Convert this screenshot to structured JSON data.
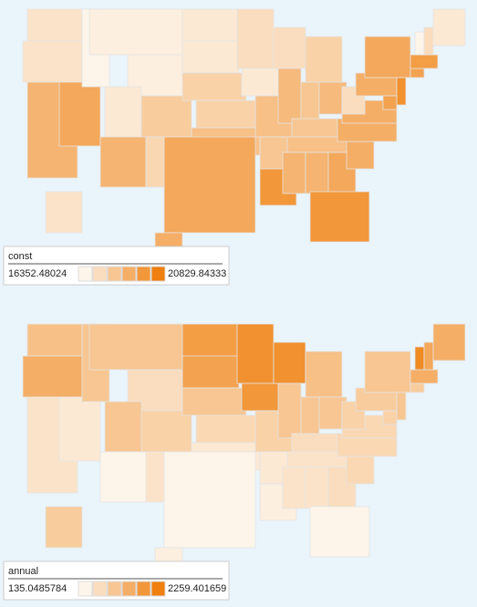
{
  "maps": [
    {
      "legend_title": "const",
      "min": 16352.48024,
      "max": 20829.84333,
      "colors": [
        "#fdf5ea",
        "#ef7f0e"
      ],
      "values": [
        17024,
        17024,
        18815,
        19263,
        16352,
        16576,
        16576,
        16800,
        18815,
        17919,
        17472,
        16800,
        16800,
        17696,
        17696,
        18367,
        19263,
        17248,
        16800,
        18367,
        18143,
        19934,
        17248,
        18591,
        17696,
        18143,
        18591,
        18143,
        18367,
        18815,
        18815,
        19263,
        19934,
        19039,
        19039,
        19039,
        17248,
        19039,
        19263,
        20158,
        19487,
        19487,
        19710,
        16352,
        17248,
        16800,
        17024,
        19039
      ]
    },
    {
      "legend_title": "annual",
      "min": 135.0485784,
      "max": 2259.401659,
      "colors": [
        "#fdf5ea",
        "#ef7f0e"
      ],
      "values": [
        1091,
        1409,
        454,
        347,
        985,
        985,
        560,
        985,
        135,
        772,
        454,
        1728,
        1622,
        985,
        666,
        347,
        135,
        1940,
        1834,
        772,
        347,
        241,
        1940,
        985,
        1091,
        985,
        985,
        560,
        454,
        454,
        454,
        560,
        135,
        666,
        666,
        666,
        772,
        878,
        985,
        985,
        772,
        878,
        1409,
        2047,
        1516,
        1409,
        878,
        241
      ]
    }
  ]
}
